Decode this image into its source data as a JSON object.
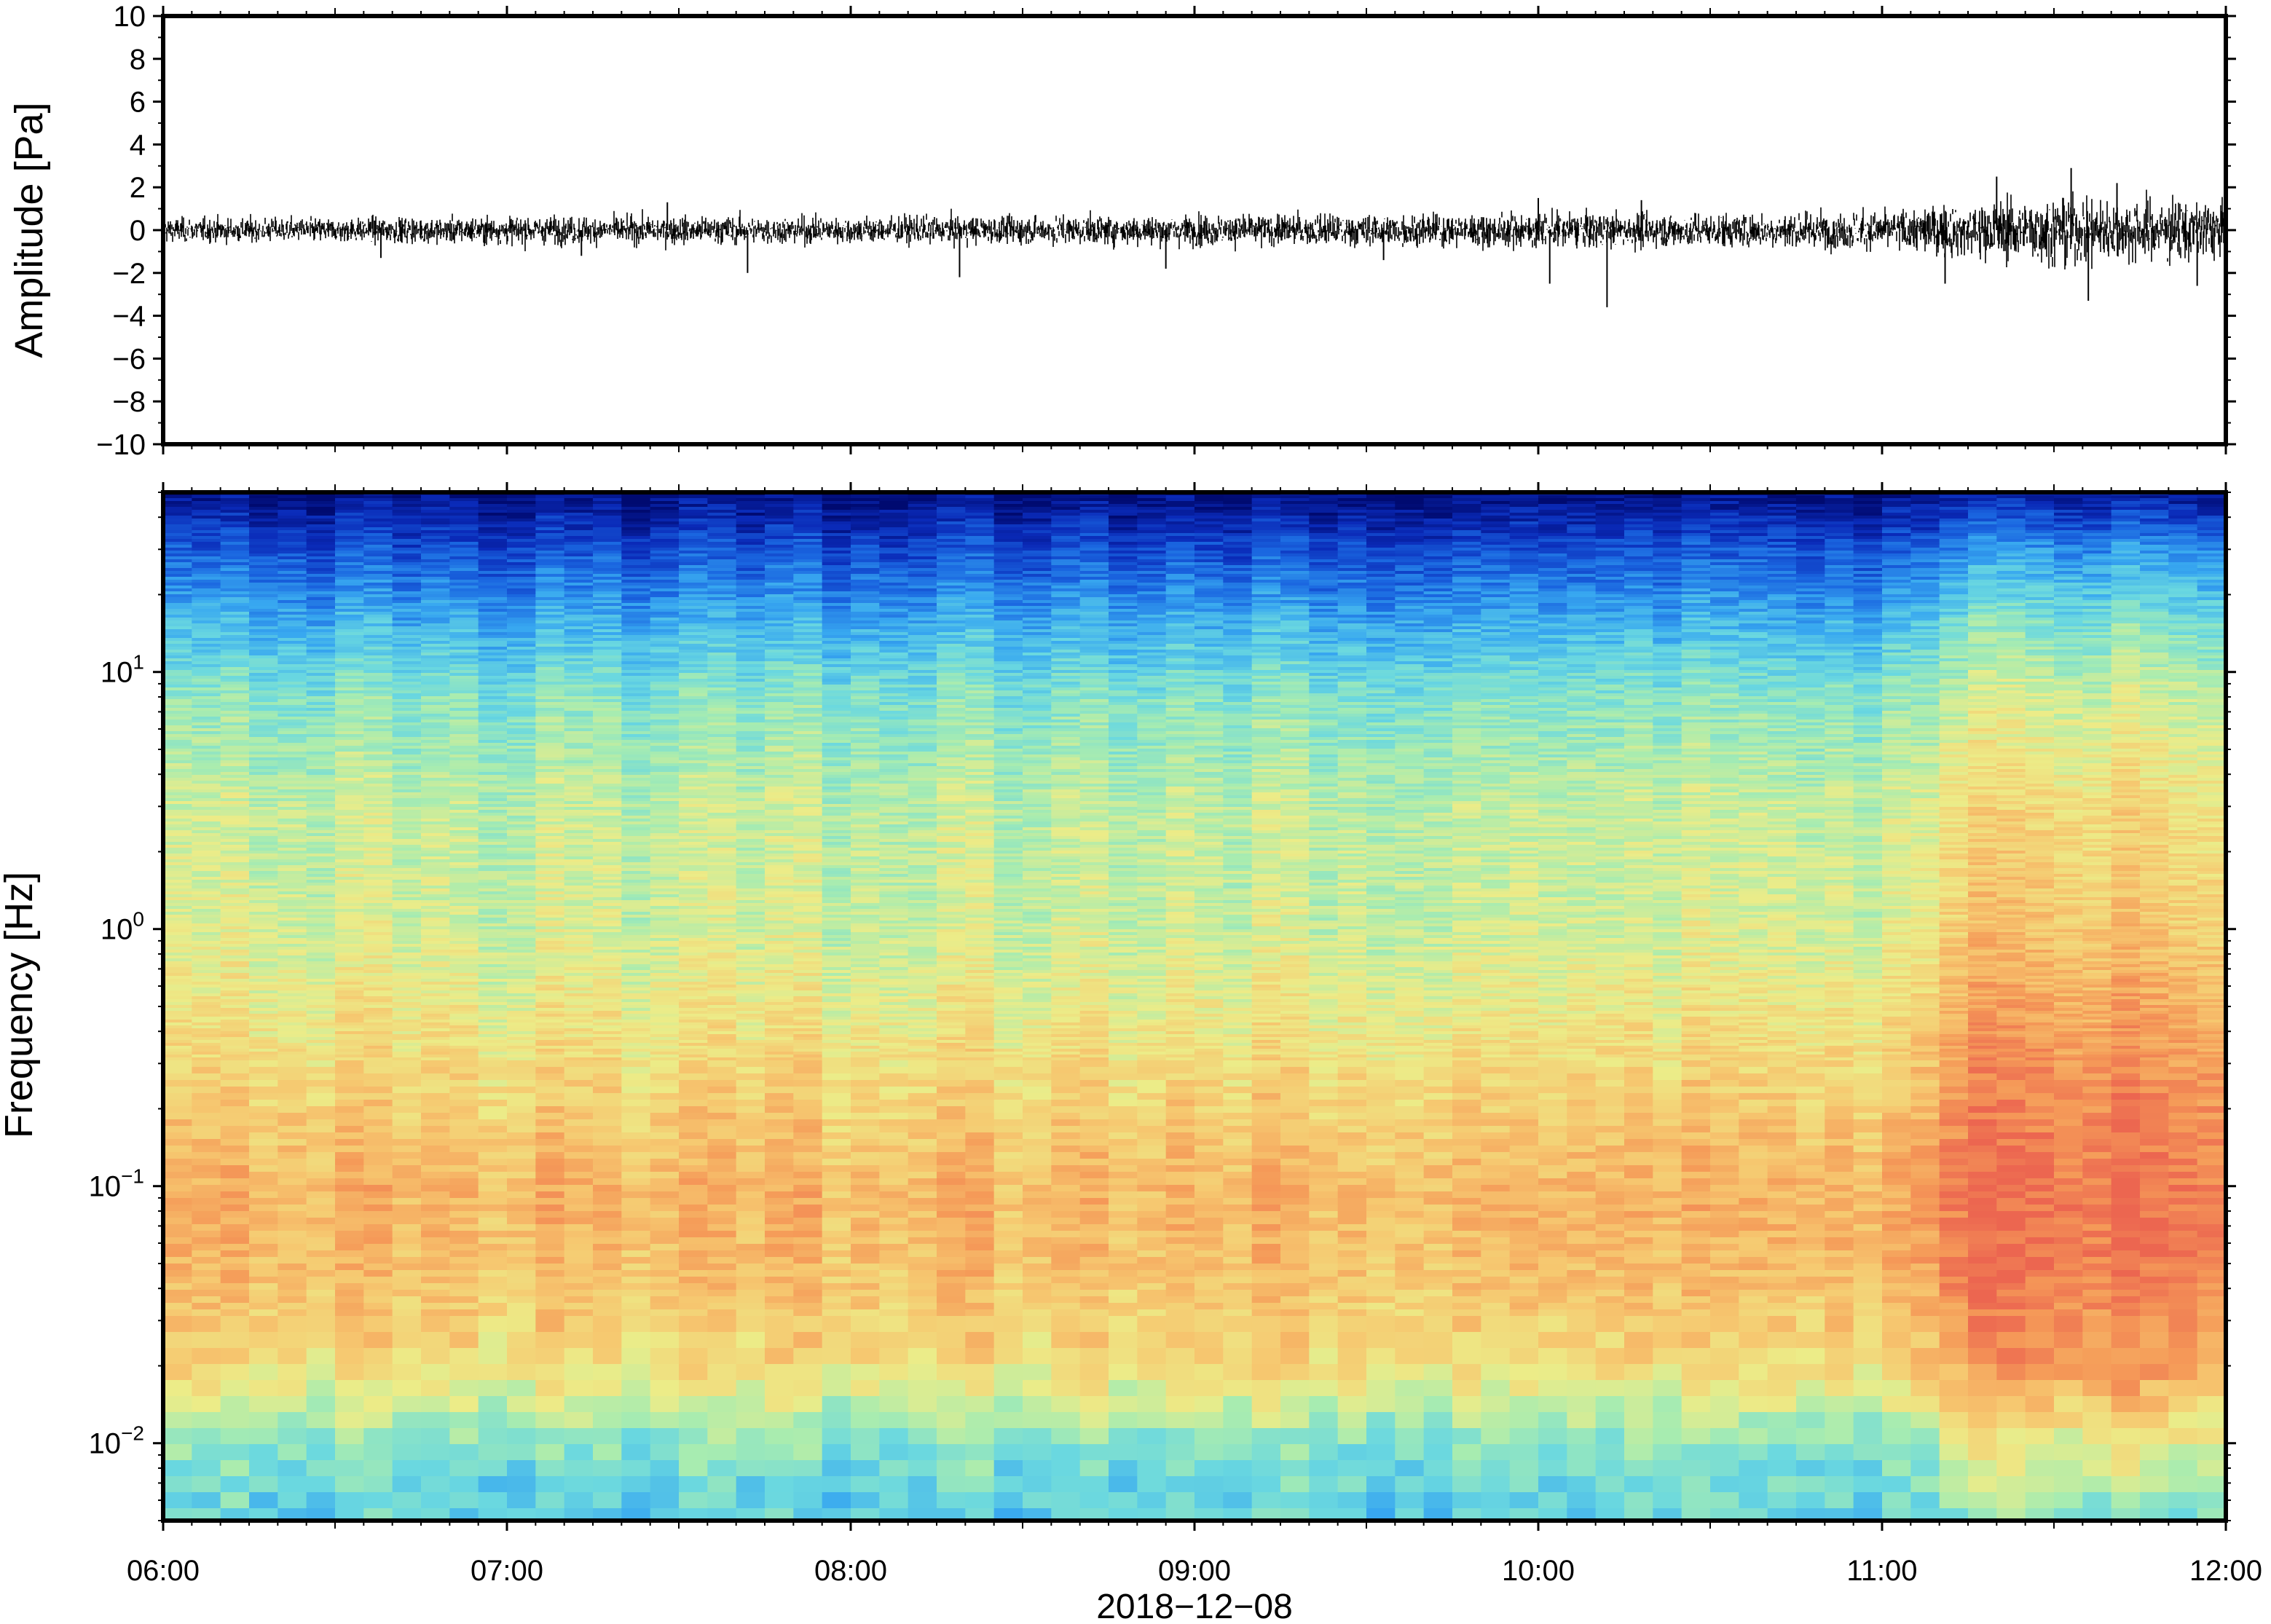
{
  "chart_data": [
    {
      "type": "line",
      "panel": "waveform",
      "ylabel": "Amplitude [Pa]",
      "ylim": [
        -10,
        10
      ],
      "yticks": [
        10,
        8,
        6,
        4,
        2,
        0,
        -2,
        -4,
        -6,
        -8,
        -10
      ],
      "ytick_labels": [
        "10",
        "8",
        "6",
        "4",
        "2",
        "0",
        "−2",
        "−4",
        "−6",
        "−8",
        "−10"
      ],
      "xlim": [
        "06:00",
        "12:00"
      ],
      "envelope": {
        "x": [
          "06:00",
          "06:30",
          "07:00",
          "07:30",
          "08:00",
          "08:30",
          "09:00",
          "09:30",
          "10:00",
          "10:30",
          "11:00",
          "11:15",
          "11:30",
          "11:45",
          "12:00"
        ],
        "upper": [
          0.7,
          0.7,
          0.8,
          0.8,
          0.8,
          0.8,
          0.9,
          0.9,
          1.0,
          1.0,
          1.1,
          1.6,
          2.0,
          1.8,
          1.7
        ],
        "lower": [
          -0.7,
          -0.7,
          -0.8,
          -0.8,
          -0.8,
          -0.8,
          -0.9,
          -0.9,
          -1.0,
          -1.0,
          -1.1,
          -1.6,
          -2.0,
          -1.8,
          -1.7
        ]
      },
      "spikes": [
        {
          "t": "06:38",
          "y": -1.3
        },
        {
          "t": "07:13",
          "y": -1.2
        },
        {
          "t": "07:28",
          "y": 1.3
        },
        {
          "t": "07:42",
          "y": -2.0
        },
        {
          "t": "08:19",
          "y": -2.2
        },
        {
          "t": "08:55",
          "y": -1.8
        },
        {
          "t": "09:33",
          "y": -1.4
        },
        {
          "t": "10:00",
          "y": 1.5
        },
        {
          "t": "10:02",
          "y": -2.5
        },
        {
          "t": "10:12",
          "y": -3.6
        },
        {
          "t": "10:18",
          "y": 1.4
        },
        {
          "t": "11:11",
          "y": -2.5
        },
        {
          "t": "11:20",
          "y": 2.5
        },
        {
          "t": "11:33",
          "y": 2.9
        },
        {
          "t": "11:36",
          "y": -3.3
        },
        {
          "t": "11:41",
          "y": 2.2
        },
        {
          "t": "11:55",
          "y": -2.6
        }
      ]
    },
    {
      "type": "heatmap",
      "panel": "spectrogram",
      "ylabel": "Frequency [Hz]",
      "yscale": "log",
      "ylim": [
        0.005,
        50
      ],
      "yticks": [
        {
          "base": "10",
          "exp": "1",
          "value": 10
        },
        {
          "base": "10",
          "exp": "0",
          "value": 1
        },
        {
          "base": "10",
          "exp": "−1",
          "value": 0.1
        },
        {
          "base": "10",
          "exp": "−2",
          "value": 0.01
        }
      ],
      "xlim": [
        "06:00",
        "12:00"
      ],
      "colormap": "rainbow",
      "colormap_stops": [
        "#000a70",
        "#0a2ab8",
        "#1a66e0",
        "#38a8f0",
        "#6ad8e0",
        "#a8ecb0",
        "#ecec88",
        "#f6c870",
        "#f59a58",
        "#ec6650"
      ],
      "level_profile": {
        "frequency_hz": [
          50,
          30,
          15,
          8,
          3,
          1,
          0.3,
          0.1,
          0.05,
          0.02,
          0.01,
          0.005
        ],
        "level_06_00_to_11_00": [
          0.02,
          0.18,
          0.36,
          0.5,
          0.6,
          0.62,
          0.72,
          0.82,
          0.8,
          0.72,
          0.5,
          0.42
        ],
        "level_11_10_to_12_00": [
          0.06,
          0.3,
          0.5,
          0.62,
          0.72,
          0.78,
          0.9,
          0.97,
          0.96,
          0.88,
          0.66,
          0.5
        ]
      },
      "notes_visual": "broadband energy increase after ~11:10, strongest near 0.05–0.3 Hz"
    }
  ],
  "x_axis": {
    "tick_labels": [
      "06:00",
      "07:00",
      "08:00",
      "09:00",
      "10:00",
      "11:00",
      "12:00"
    ],
    "date_label": "2018−12−08"
  }
}
